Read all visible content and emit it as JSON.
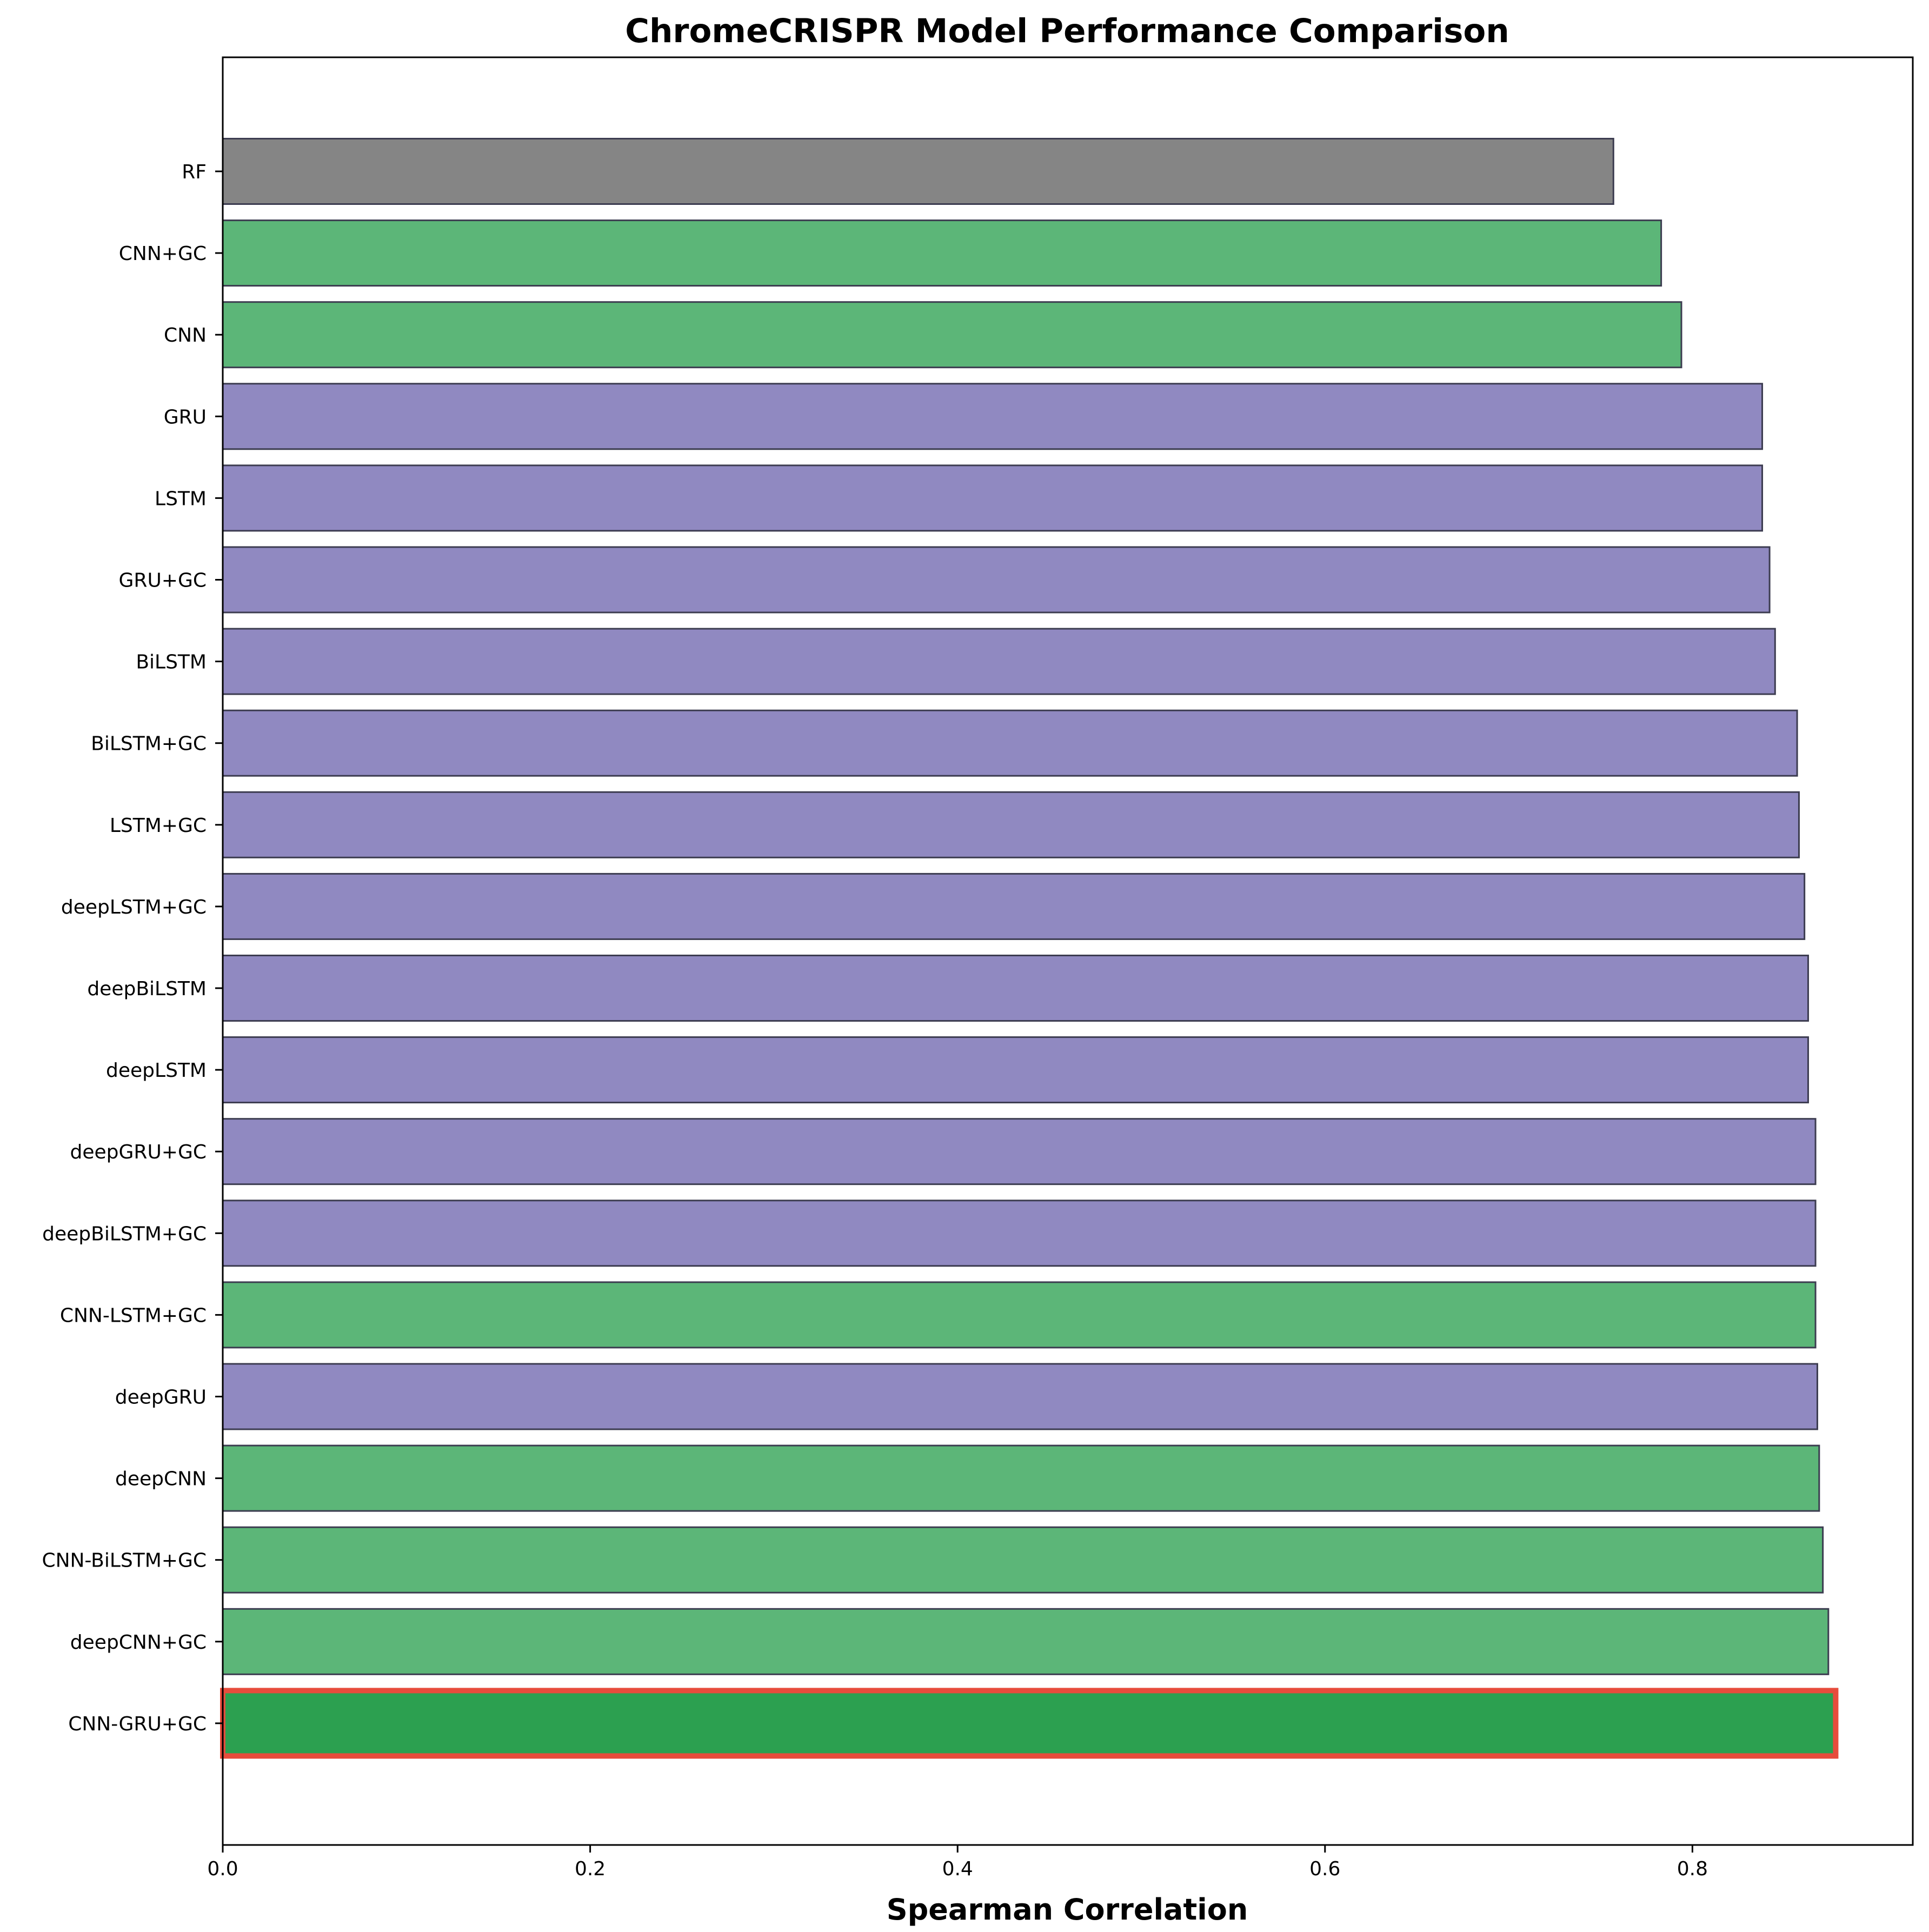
{
  "chart_data": {
    "type": "bar",
    "orientation": "horizontal",
    "title": "ChromeCRISPR Model Performance Comparison",
    "xlabel": "Spearman Correlation",
    "ylabel": "",
    "xlim": [
      0,
      0.92
    ],
    "xticks": [
      0.0,
      0.2,
      0.4,
      0.6,
      0.8
    ],
    "xtick_labels": [
      "0.0",
      "0.2",
      "0.4",
      "0.6",
      "0.8"
    ],
    "grid": false,
    "legend": "none",
    "categories": [
      "RF",
      "CNN+GC",
      "CNN",
      "GRU",
      "LSTM",
      "GRU+GC",
      "BiLSTM",
      "BiLSTM+GC",
      "LSTM+GC",
      "deepLSTM+GC",
      "deepBiLSTM",
      "deepLSTM",
      "deepGRU+GC",
      "deepBiLSTM+GC",
      "CNN-LSTM+GC",
      "deepGRU",
      "deepCNN",
      "CNN-BiLSTM+GC",
      "deepCNN+GC",
      "CNN-GRU+GC"
    ],
    "values": [
      0.757,
      0.783,
      0.794,
      0.838,
      0.838,
      0.842,
      0.845,
      0.857,
      0.858,
      0.861,
      0.863,
      0.863,
      0.867,
      0.867,
      0.867,
      0.868,
      0.869,
      0.871,
      0.874,
      0.878
    ],
    "groups": [
      "baseline",
      "cnn",
      "cnn",
      "rnn",
      "rnn",
      "rnn",
      "rnn",
      "rnn",
      "rnn",
      "rnn",
      "rnn",
      "rnn",
      "rnn",
      "rnn",
      "cnn",
      "rnn",
      "cnn",
      "cnn",
      "cnn",
      "best"
    ],
    "colors": {
      "baseline": "#858585",
      "cnn": "#5cb678",
      "rnn": "#9089c1",
      "best": "#2ca050",
      "edge": "#3c3c50",
      "highlight_edge": "#e74c3c"
    },
    "highlighted": "CNN-GRU+GC"
  }
}
